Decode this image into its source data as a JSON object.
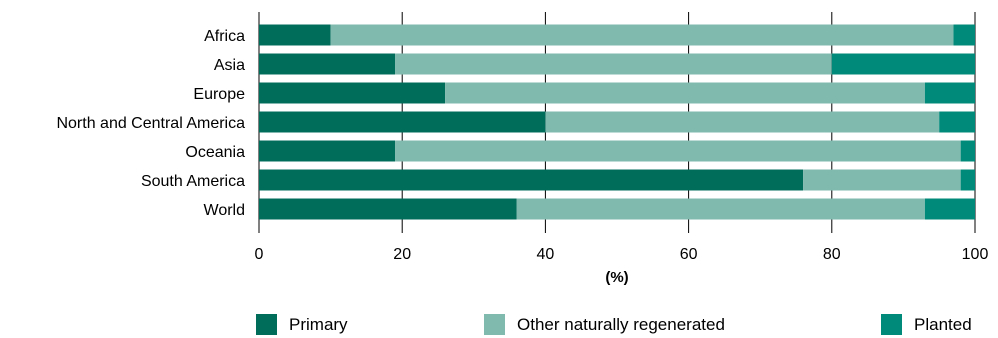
{
  "chart_data": {
    "type": "bar",
    "orientation": "horizontal",
    "stacked": true,
    "categories": [
      "Africa",
      "Asia",
      "Europe",
      "North and Central America",
      "Oceania",
      "South America",
      "World"
    ],
    "series": [
      {
        "name": "Primary",
        "color": "#006d5b",
        "values": [
          10,
          19,
          26,
          40,
          19,
          76,
          36
        ]
      },
      {
        "name": "Other naturally regenerated",
        "color": "#80b9ae",
        "values": [
          87,
          61,
          67,
          55,
          79,
          22,
          57
        ]
      },
      {
        "name": "Planted",
        "color": "#008a7a",
        "values": [
          3,
          20,
          7,
          5,
          2,
          2,
          7
        ]
      }
    ],
    "xticks": [
      0,
      20,
      40,
      60,
      80,
      100
    ],
    "xlim": [
      0,
      100
    ],
    "xlabel": "(%)",
    "ylabel": "",
    "title": "",
    "grid": "vertical",
    "legend_position": "bottom"
  }
}
